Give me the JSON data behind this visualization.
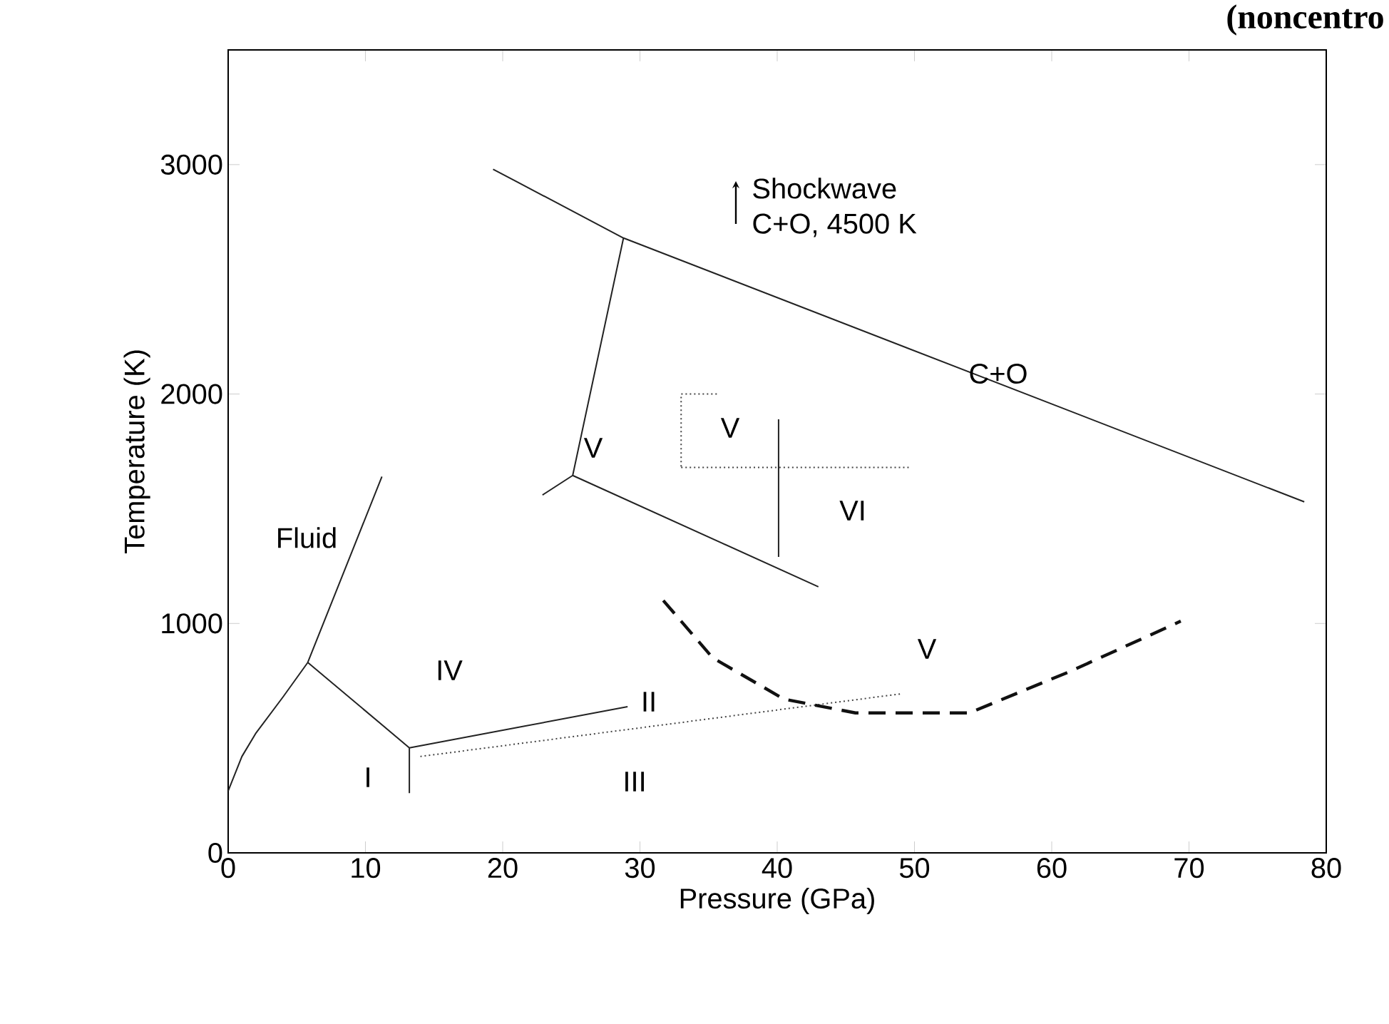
{
  "chart_data": {
    "type": "line",
    "xlabel": "Pressure (GPa)",
    "ylabel": "Temperature (K)",
    "xlim": [
      0,
      80
    ],
    "ylim": [
      0,
      3500
    ],
    "xticks": [
      0,
      10,
      20,
      30,
      40,
      50,
      60,
      70,
      80
    ],
    "yticks": [
      0,
      1000,
      2000,
      3000
    ],
    "grid": false,
    "marker": "none",
    "series": [
      {
        "color": "#222222",
        "line_style": "solid",
        "x": [
          0,
          1,
          2,
          4,
          5.8,
          11.2,
          null,
          5.8,
          13.2,
          29.1,
          null,
          13.2,
          13.2,
          null,
          22.9,
          25.1,
          43,
          null,
          25.1,
          28.8,
          null,
          19.3,
          28.8,
          78.4,
          null,
          40.1,
          40.1
        ],
        "values": [
          270,
          420,
          520,
          680,
          830,
          1640,
          null,
          830,
          458,
          637,
          null,
          458,
          260,
          null,
          1560,
          1645,
          1160,
          null,
          1645,
          2680,
          null,
          2980,
          2680,
          1530,
          null,
          1890,
          1290
        ]
      },
      {
        "color": "#444444",
        "line_style": "dotted",
        "x": [
          14,
          49,
          null,
          33,
          49.6,
          null,
          35.6,
          33,
          33
        ],
        "values": [
          420,
          693,
          null,
          1680,
          1680,
          null,
          2000,
          2000,
          1680
        ]
      },
      {
        "color": "#111111",
        "line_style": "dashed",
        "x": [
          31.7,
          35.3,
          40.5,
          45.7,
          54,
          61.3,
          69.4
        ],
        "values": [
          1100,
          850,
          670,
          610,
          610,
          790,
          1010
        ]
      }
    ],
    "annotations": [
      "Fluid",
      "IV",
      "I",
      "II",
      "III",
      "V",
      "V",
      "VI",
      "V",
      "C+O",
      "Shockwave",
      "C+O, 4500 K",
      "(noncentro"
    ]
  }
}
